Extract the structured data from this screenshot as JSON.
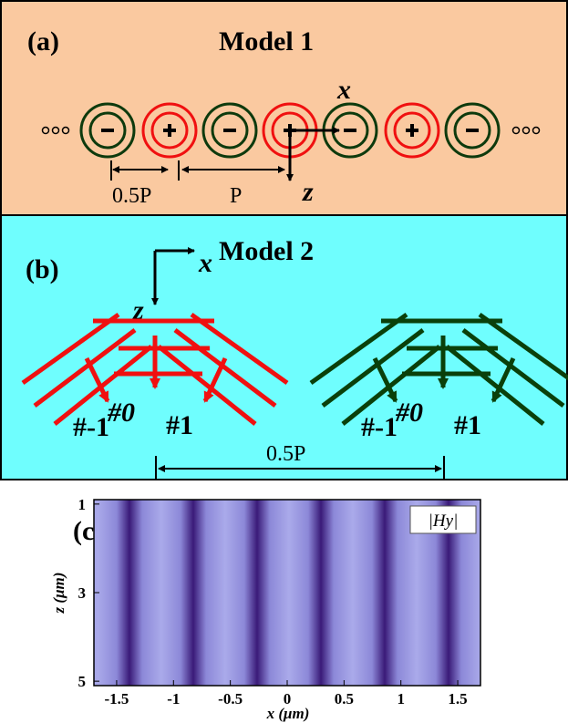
{
  "panel_a": {
    "label": "(a)",
    "title": "Model 1",
    "axis_x": "x",
    "axis_z": "z",
    "spacing_half": "0.5P",
    "spacing_full": "P"
  },
  "panel_b": {
    "label": "(b)",
    "title": "Model 2",
    "axis_x": "x",
    "axis_z": "z",
    "red_orders": [
      "#-1",
      "#0",
      "#1"
    ],
    "green_orders": [
      "#-1",
      "#0",
      "#1"
    ],
    "separation": "0.5P"
  },
  "panel_c": {
    "label": "(c)",
    "legend": "|Hy|",
    "xlabel": "x (μm)",
    "ylabel": "z (μm)",
    "xlim": [
      -1.7,
      1.7
    ],
    "ylim": [
      0.9,
      5.1
    ],
    "xticks": [
      -1.5,
      -1,
      -0.5,
      0,
      0.5,
      1,
      1.5
    ],
    "yticks": [
      1,
      3,
      5
    ]
  }
}
